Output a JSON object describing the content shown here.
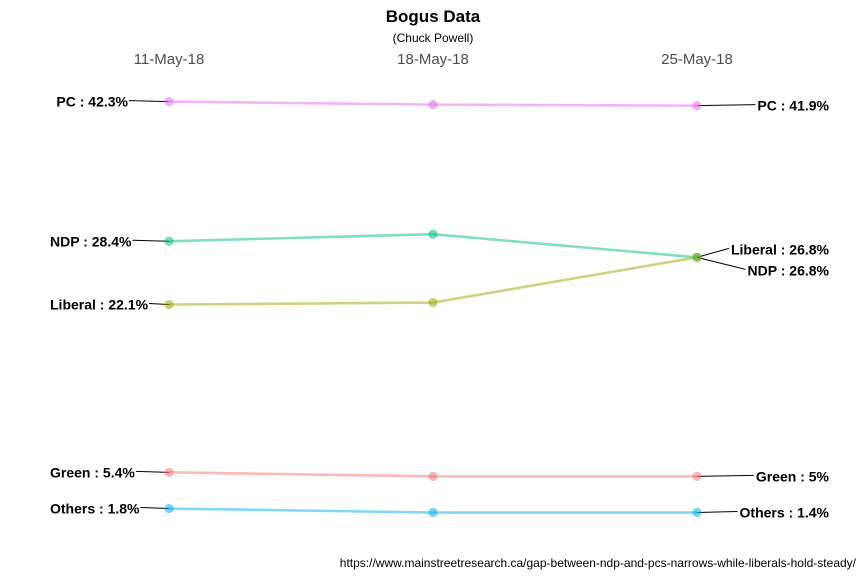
{
  "chart_data": {
    "type": "line",
    "title": "Bogus Data",
    "subtitle": "(Chuck Powell)",
    "caption": "https://www.mainstreetresearch.ca/gap-between-ndp-and-pcs-narrows-while-liberals-hold-steady/",
    "categories": [
      "11-May-18",
      "18-May-18",
      "25-May-18"
    ],
    "series": [
      {
        "name": "PC",
        "values": [
          42.3,
          42.0,
          41.9
        ],
        "color": "#E76BF3",
        "start_label": "PC : 42.3%",
        "end_label": "PC : 41.9%"
      },
      {
        "name": "NDP",
        "values": [
          28.4,
          29.1,
          26.8
        ],
        "color": "#00BF7D",
        "start_label": "NDP : 28.4%",
        "end_label": "NDP : 26.8%"
      },
      {
        "name": "Liberal",
        "values": [
          22.1,
          22.3,
          26.8
        ],
        "color": "#A3A500",
        "start_label": "Liberal : 22.1%",
        "end_label": "Liberal : 26.8%"
      },
      {
        "name": "Green",
        "values": [
          5.4,
          5.0,
          5.0
        ],
        "color": "#F8766D",
        "start_label": "Green : 5.4%",
        "end_label": "Green : 5%"
      },
      {
        "name": "Others",
        "values": [
          1.8,
          1.4,
          1.4
        ],
        "color": "#00B0F6",
        "start_label": "Others : 1.8%",
        "end_label": "Others : 1.4%"
      }
    ],
    "y_axis_visible": false,
    "grid": false,
    "legend": "none"
  }
}
